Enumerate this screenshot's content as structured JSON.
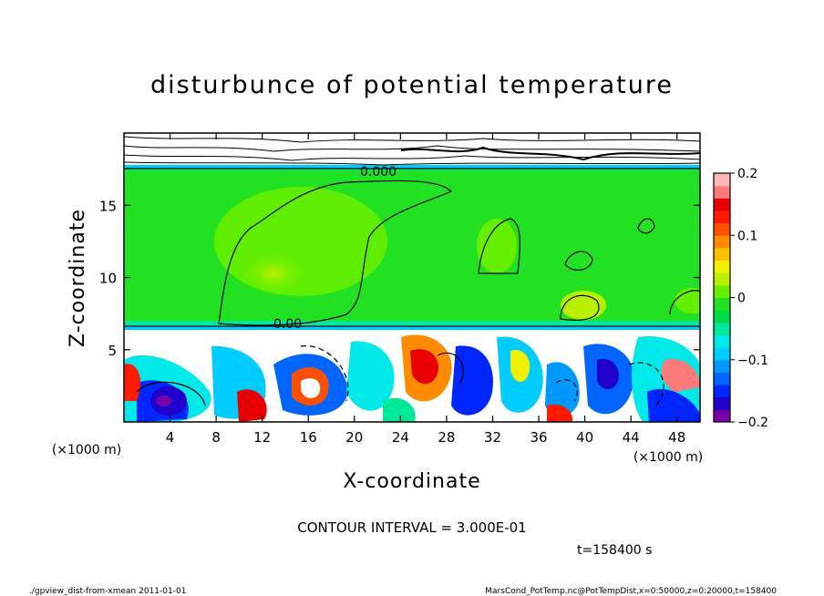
{
  "chart_data": {
    "type": "heatmap",
    "title": "disturbunce of potential temperature",
    "xlabel": "X-coordinate",
    "ylabel": "Z-coordinate",
    "x_unit": "(×1000 m)",
    "y_unit": "(×1000 m)",
    "xlim": [
      0,
      50
    ],
    "ylim": [
      0,
      20
    ],
    "x_ticks": [
      "4",
      "8",
      "12",
      "16",
      "20",
      "24",
      "28",
      "32",
      "36",
      "40",
      "44",
      "48"
    ],
    "y_ticks": [
      "5",
      "10",
      "15"
    ],
    "contour_label_top": "0.000",
    "contour_label_mid": "0.00",
    "contour_interval": "CONTOUR INTERVAL = 3.000E-01",
    "time": "t=158400 s",
    "colorbar": {
      "min": -0.2,
      "max": 0.2,
      "tick_labels": [
        "0.2",
        "0.1",
        "0",
        "−0.1",
        "−0.2"
      ],
      "tick_values": [
        0.2,
        0.1,
        0,
        -0.1,
        -0.2
      ],
      "colors": [
        "#7a00a8",
        "#2200cc",
        "#0026ff",
        "#0066ff",
        "#0099ff",
        "#00ccff",
        "#00e8e8",
        "#00e89a",
        "#00dd44",
        "#22e022",
        "#66f000",
        "#b8f000",
        "#f0f000",
        "#ffc000",
        "#ff8c00",
        "#ff5000",
        "#ff1a00",
        "#e80000",
        "#ff7a7a",
        "#ffb8b8"
      ]
    },
    "regions": {
      "upper_green_z": [
        6.5,
        17.5
      ],
      "boundary_z": 17.5,
      "mixed_layer_top_z": 6.5
    }
  },
  "footer": {
    "left": "./gpview_dist-from-xmean   2011-01-01",
    "right": "MarsCond_PotTemp.nc@PotTempDist,x=0:50000,z=0:20000,t=158400"
  }
}
